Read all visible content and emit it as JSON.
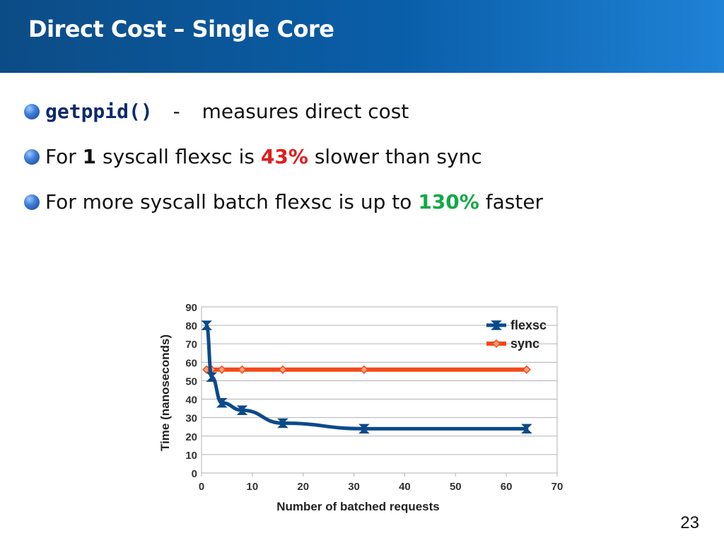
{
  "slide": {
    "title": "Direct Cost – Single Core",
    "page_number": "23",
    "colors": {
      "header": "#0c4c86",
      "red": "#e31b1b",
      "green": "#13a846"
    }
  },
  "bullets": [
    {
      "code": "getppid()",
      "dash": "-",
      "text": "measures direct cost"
    },
    {
      "pre": "For",
      "num": "1",
      "mid": "syscall flexsc is",
      "pct": "43%",
      "post": "slower than sync"
    },
    {
      "pre": "For more syscall batch flexsc is up to",
      "pct": "130%",
      "post": "faster"
    }
  ],
  "chart_data": {
    "type": "line",
    "xlabel": "Number of batched requests",
    "ylabel": "Time (nanoseconds)",
    "xlim": [
      0,
      70
    ],
    "ylim": [
      0,
      90
    ],
    "xticks": [
      0,
      10,
      20,
      30,
      40,
      50,
      60,
      70
    ],
    "yticks": [
      0,
      10,
      20,
      30,
      40,
      50,
      60,
      70,
      80,
      90
    ],
    "grid": "horizontal",
    "legend_position": "top-right",
    "series": [
      {
        "name": "flexsc",
        "color": "#0c4a8a",
        "marker": "hourglass",
        "x": [
          1,
          2,
          4,
          8,
          16,
          32,
          64
        ],
        "y": [
          80,
          52,
          38,
          34,
          27,
          24,
          24
        ]
      },
      {
        "name": "sync",
        "color": "#f24a1a",
        "marker": "diamond",
        "x": [
          1,
          2,
          4,
          8,
          16,
          32,
          64
        ],
        "y": [
          56,
          56,
          56,
          56,
          56,
          56,
          56
        ]
      }
    ]
  }
}
